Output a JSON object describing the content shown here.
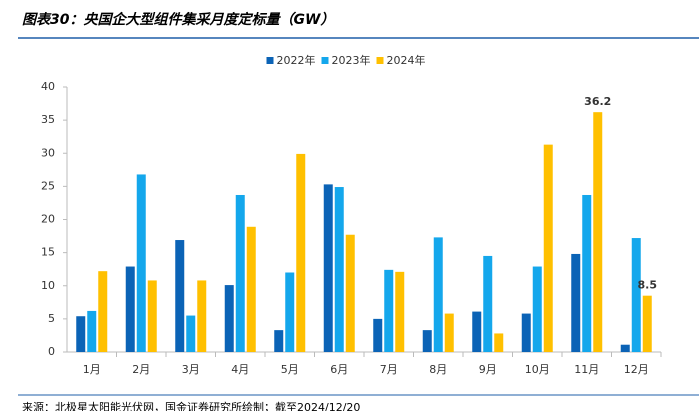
{
  "chart_data": {
    "type": "bar",
    "title": "图表30：央国企大型组件集采月度定标量（GW）",
    "categories": [
      "1月",
      "2月",
      "3月",
      "4月",
      "5月",
      "6月",
      "7月",
      "8月",
      "9月",
      "10月",
      "11月",
      "12月"
    ],
    "series": [
      {
        "name": "2022年",
        "color": "#0b63b6",
        "values": [
          5.4,
          12.9,
          16.9,
          10.1,
          3.3,
          25.3,
          5.0,
          3.3,
          6.1,
          5.8,
          14.8,
          1.1
        ]
      },
      {
        "name": "2023年",
        "color": "#14a7ec",
        "values": [
          6.2,
          26.8,
          5.5,
          23.7,
          12.0,
          24.9,
          12.4,
          17.3,
          14.5,
          12.9,
          23.7,
          17.2
        ]
      },
      {
        "name": "2024年",
        "color": "#ffc000",
        "values": [
          12.2,
          10.8,
          10.8,
          18.9,
          29.9,
          17.7,
          12.1,
          5.8,
          2.8,
          31.3,
          36.2,
          8.5
        ],
        "value_labels": [
          null,
          null,
          null,
          null,
          null,
          null,
          null,
          null,
          null,
          null,
          "36.2",
          "8.5"
        ]
      }
    ],
    "ylim": [
      0,
      40
    ],
    "yticks": [
      0,
      5,
      10,
      15,
      20,
      25,
      30,
      35,
      40
    ],
    "legend": "top",
    "source": "来源：北极星太阳能光伏网，国金证券研究所绘制；截至2024/12/20"
  }
}
